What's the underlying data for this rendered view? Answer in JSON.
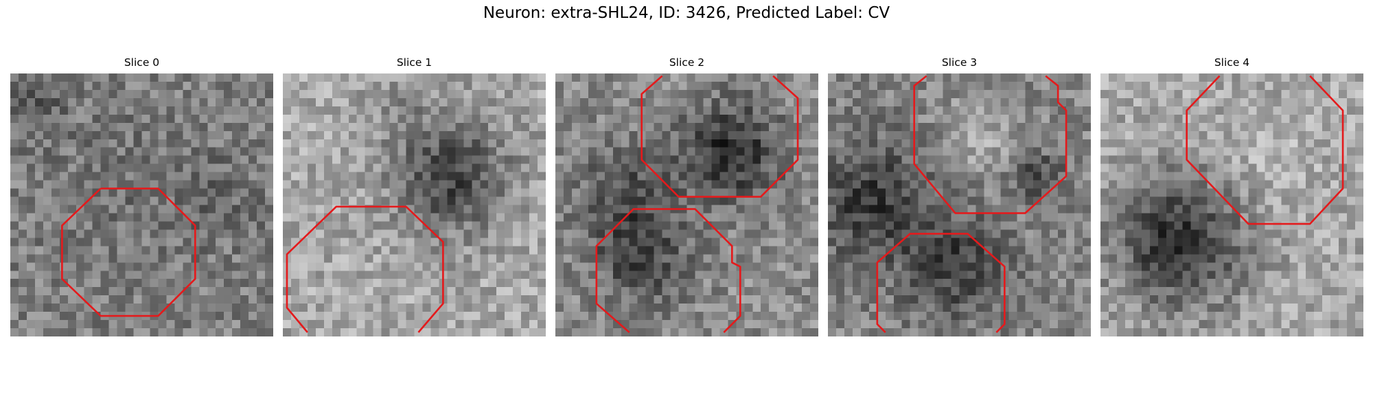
{
  "figure": {
    "title": "Neuron: extra-SHL24, ID: 3426, Predicted Label: CV"
  },
  "panels": [
    {
      "title": "Slice 0"
    },
    {
      "title": "Slice 1"
    },
    {
      "title": "Slice 2"
    },
    {
      "title": "Slice 3"
    },
    {
      "title": "Slice 4"
    }
  ],
  "colors": {
    "contour": "#e41a1c",
    "background": "#ffffff"
  }
}
